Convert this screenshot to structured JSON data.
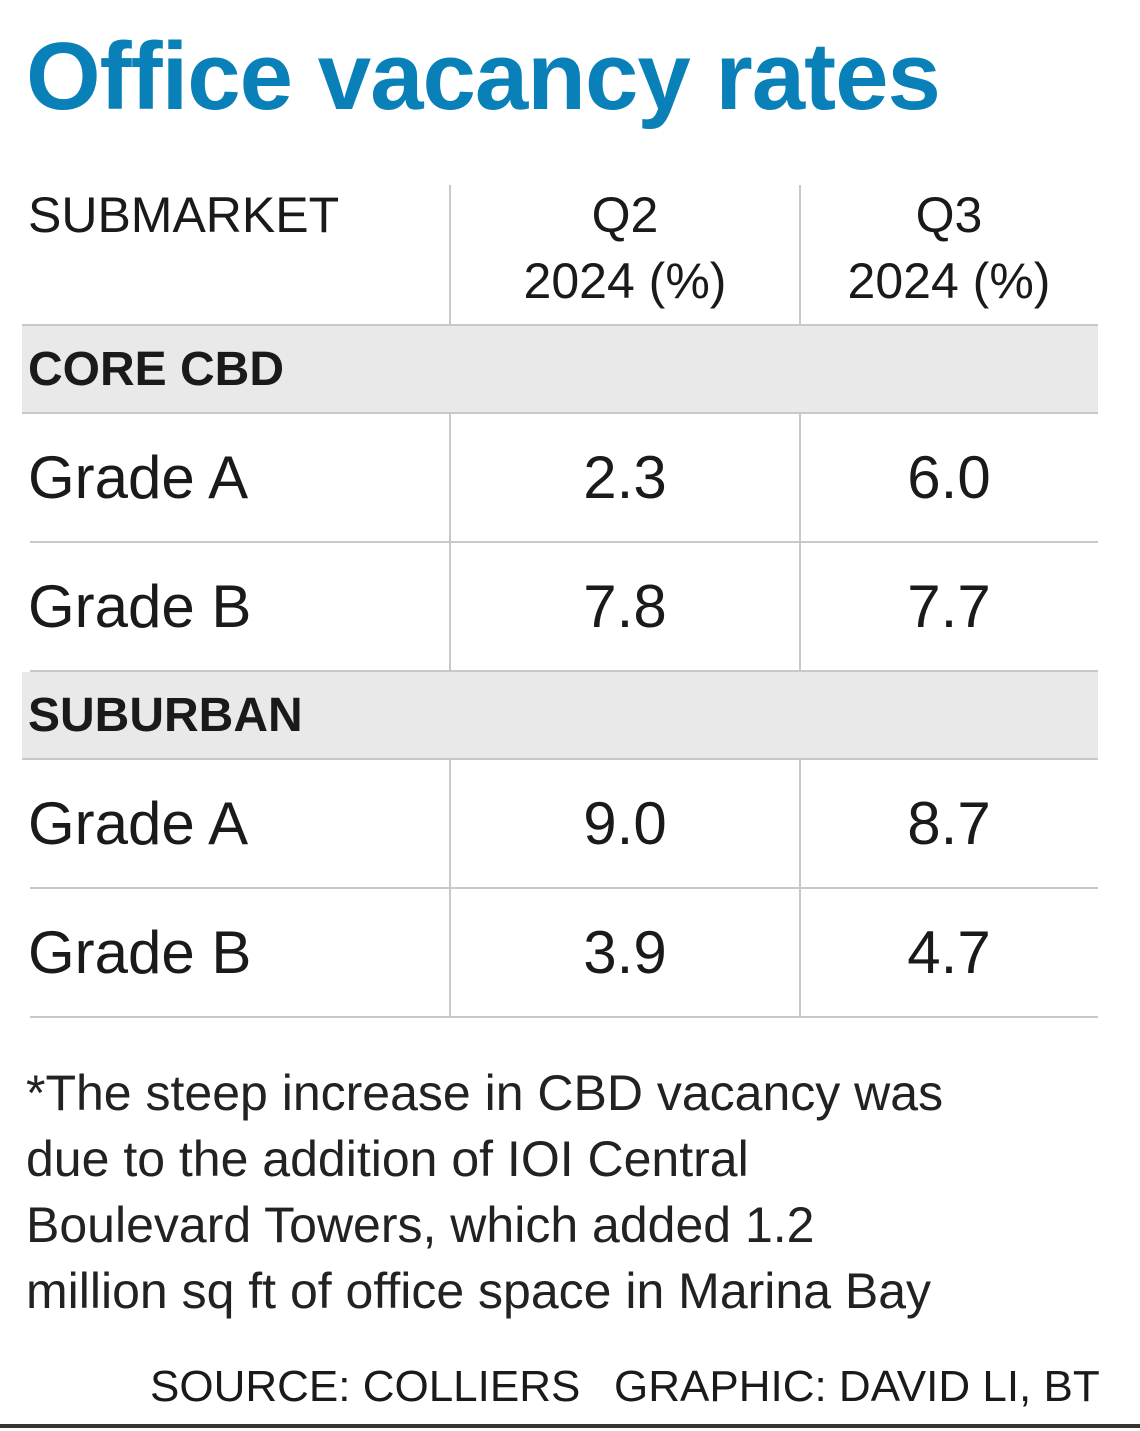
{
  "title": "Office vacancy rates",
  "table": {
    "header": [
      "SUBMARKET",
      {
        "lines": [
          "Q2",
          "2024 (%)"
        ]
      },
      {
        "lines": [
          "Q3",
          "2024 (%)"
        ]
      }
    ],
    "sections": [
      {
        "label": "CORE CBD",
        "rows": [
          [
            "Grade A",
            "2.3",
            "6.0"
          ],
          [
            "Grade B",
            "7.8",
            "7.7"
          ]
        ]
      },
      {
        "label": "SUBURBAN",
        "rows": [
          [
            "Grade A",
            "9.0",
            "8.7"
          ],
          [
            "Grade B",
            "3.9",
            "4.7"
          ]
        ]
      }
    ]
  },
  "note": {
    "lines": [
      "*The steep increase in CBD vacancy was",
      "due to the addition of IOI Central",
      "Boulevard Towers, which added 1.2",
      "million sq ft of office space in Marina Bay"
    ]
  },
  "footer": {
    "source": "SOURCE: COLLIERS",
    "credit": "GRAPHIC: DAVID LI, BT"
  }
}
